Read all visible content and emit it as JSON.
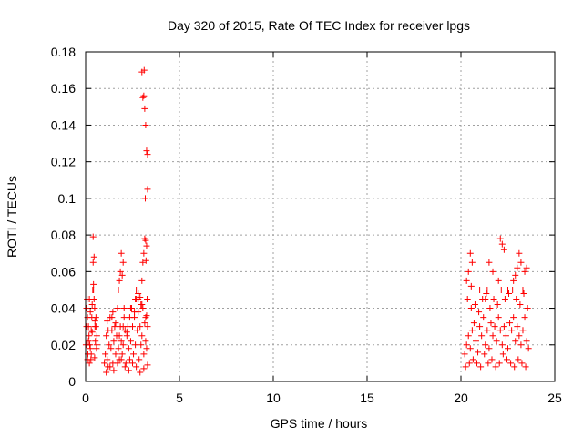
{
  "chart_data": {
    "type": "scatter",
    "title": "Day 320 of 2015, Rate Of TEC Index for receiver lpgs",
    "xlabel": "GPS time / hours",
    "ylabel": "ROTI / TECUs",
    "xlim": [
      0,
      25
    ],
    "ylim": [
      0,
      0.18
    ],
    "xticks": [
      0,
      5,
      10,
      15,
      20,
      25
    ],
    "xtick_labels": [
      "0",
      "5",
      "10",
      "15",
      "20",
      "25"
    ],
    "yticks": [
      0,
      0.02,
      0.04,
      0.06,
      0.08,
      0.1,
      0.12,
      0.14,
      0.16,
      0.18
    ],
    "ytick_labels": [
      "0",
      "0.02",
      "0.04",
      "0.06",
      "0.08",
      "0.1",
      "0.12",
      "0.14",
      "0.16",
      "0.18"
    ],
    "grid": true,
    "marker": "+",
    "color": "#ff0000",
    "series": [
      {
        "name": "ROTI",
        "x": [
          0.02,
          0.05,
          0.08,
          0.1,
          0.12,
          0.15,
          0.18,
          0.2,
          0.22,
          0.25,
          0.28,
          0.3,
          0.33,
          0.35,
          0.38,
          0.4,
          0.42,
          0.45,
          0.48,
          0.5,
          0.52,
          0.55,
          0.58,
          0.6,
          0.1,
          0.2,
          0.3,
          0.4,
          0.45,
          0.5,
          0.05,
          0.15,
          0.25,
          0.35,
          0.42,
          0.48,
          0.55,
          0.6,
          1.0,
          1.05,
          1.1,
          1.15,
          1.2,
          1.25,
          1.3,
          1.35,
          1.4,
          1.45,
          1.5,
          1.55,
          1.6,
          1.65,
          1.7,
          1.75,
          1.8,
          1.85,
          1.9,
          1.95,
          2.0,
          2.05,
          2.1,
          2.15,
          2.2,
          2.25,
          2.3,
          2.35,
          2.4,
          2.45,
          2.5,
          2.55,
          2.6,
          2.65,
          2.7,
          2.75,
          2.8,
          2.85,
          2.9,
          2.95,
          3.0,
          3.05,
          3.1,
          3.15,
          3.2,
          3.25,
          3.3,
          1.1,
          1.3,
          1.5,
          1.7,
          1.9,
          2.1,
          2.3,
          2.5,
          2.7,
          2.9,
          3.1,
          3.3,
          1.2,
          1.4,
          1.6,
          1.8,
          2.0,
          2.2,
          2.4,
          2.6,
          2.8,
          3.0,
          3.2,
          1.15,
          1.45,
          1.75,
          2.05,
          2.35,
          2.65,
          2.95,
          3.25,
          1.8,
          1.85,
          1.9,
          2.0,
          1.95,
          2.7,
          2.8,
          2.9,
          3.0,
          3.05,
          3.1,
          3.15,
          3.2,
          3.25,
          3.3,
          3.3,
          3.25,
          3.2,
          3.15,
          3.1,
          3.05,
          3.0,
          3.12,
          3.18,
          3.22,
          3.28,
          20.2,
          20.3,
          20.4,
          20.5,
          20.6,
          20.7,
          20.8,
          20.9,
          21.0,
          21.1,
          21.2,
          21.3,
          21.4,
          21.5,
          21.6,
          21.7,
          21.8,
          21.9,
          22.0,
          22.1,
          22.2,
          22.3,
          22.4,
          22.5,
          22.6,
          22.7,
          22.8,
          22.9,
          23.0,
          23.1,
          23.2,
          23.3,
          23.4,
          23.5,
          23.6,
          20.25,
          20.45,
          20.65,
          20.85,
          21.05,
          21.25,
          21.45,
          21.65,
          21.85,
          22.05,
          22.25,
          22.45,
          22.65,
          22.85,
          23.05,
          23.25,
          23.45,
          20.35,
          20.55,
          20.75,
          20.95,
          21.15,
          21.35,
          21.55,
          21.75,
          21.95,
          22.15,
          22.35,
          22.55,
          22.75,
          22.95,
          23.15,
          23.35,
          23.55,
          20.3,
          20.5,
          20.6,
          21.0,
          21.3,
          21.5,
          21.7,
          22.0,
          22.1,
          22.2,
          22.5,
          22.8,
          23.0,
          23.1,
          23.2,
          23.4,
          23.5,
          20.4,
          20.55,
          21.4,
          22.3,
          22.9,
          23.3
        ],
        "y": [
          0.02,
          0.03,
          0.045,
          0.035,
          0.015,
          0.03,
          0.025,
          0.045,
          0.02,
          0.038,
          0.012,
          0.028,
          0.035,
          0.042,
          0.05,
          0.065,
          0.053,
          0.045,
          0.04,
          0.03,
          0.022,
          0.035,
          0.018,
          0.025,
          0.012,
          0.01,
          0.015,
          0.079,
          0.068,
          0.033,
          0.04,
          0.022,
          0.018,
          0.027,
          0.05,
          0.013,
          0.03,
          0.02,
          0.01,
          0.015,
          0.025,
          0.012,
          0.008,
          0.02,
          0.035,
          0.018,
          0.028,
          0.01,
          0.022,
          0.03,
          0.015,
          0.025,
          0.04,
          0.018,
          0.012,
          0.03,
          0.022,
          0.015,
          0.02,
          0.035,
          0.028,
          0.01,
          0.025,
          0.03,
          0.018,
          0.012,
          0.022,
          0.04,
          0.03,
          0.015,
          0.035,
          0.02,
          0.045,
          0.028,
          0.038,
          0.012,
          0.03,
          0.02,
          0.025,
          0.04,
          0.015,
          0.032,
          0.022,
          0.018,
          0.03,
          0.005,
          0.008,
          0.006,
          0.01,
          0.012,
          0.008,
          0.006,
          0.01,
          0.008,
          0.005,
          0.007,
          0.009,
          0.028,
          0.035,
          0.032,
          0.025,
          0.03,
          0.027,
          0.04,
          0.038,
          0.045,
          0.042,
          0.035,
          0.033,
          0.038,
          0.05,
          0.04,
          0.035,
          0.045,
          0.042,
          0.036,
          0.055,
          0.06,
          0.07,
          0.065,
          0.058,
          0.05,
          0.048,
          0.046,
          0.055,
          0.065,
          0.07,
          0.078,
          0.077,
          0.074,
          0.105,
          0.124,
          0.126,
          0.14,
          0.149,
          0.156,
          0.155,
          0.169,
          0.17,
          0.1,
          0.066,
          0.045,
          0.015,
          0.02,
          0.025,
          0.018,
          0.028,
          0.032,
          0.022,
          0.016,
          0.03,
          0.025,
          0.035,
          0.02,
          0.028,
          0.018,
          0.032,
          0.025,
          0.03,
          0.022,
          0.035,
          0.028,
          0.02,
          0.03,
          0.025,
          0.018,
          0.032,
          0.028,
          0.035,
          0.022,
          0.03,
          0.025,
          0.02,
          0.028,
          0.035,
          0.022,
          0.018,
          0.008,
          0.01,
          0.012,
          0.01,
          0.008,
          0.015,
          0.01,
          0.012,
          0.008,
          0.01,
          0.015,
          0.012,
          0.01,
          0.008,
          0.012,
          0.01,
          0.008,
          0.045,
          0.04,
          0.042,
          0.038,
          0.045,
          0.048,
          0.04,
          0.045,
          0.042,
          0.05,
          0.045,
          0.048,
          0.05,
          0.045,
          0.042,
          0.048,
          0.04,
          0.055,
          0.07,
          0.065,
          0.05,
          0.045,
          0.065,
          0.06,
          0.055,
          0.078,
          0.075,
          0.05,
          0.055,
          0.062,
          0.07,
          0.065,
          0.06,
          0.062,
          0.06,
          0.052,
          0.05,
          0.072,
          0.058,
          0.05
        ]
      }
    ]
  }
}
